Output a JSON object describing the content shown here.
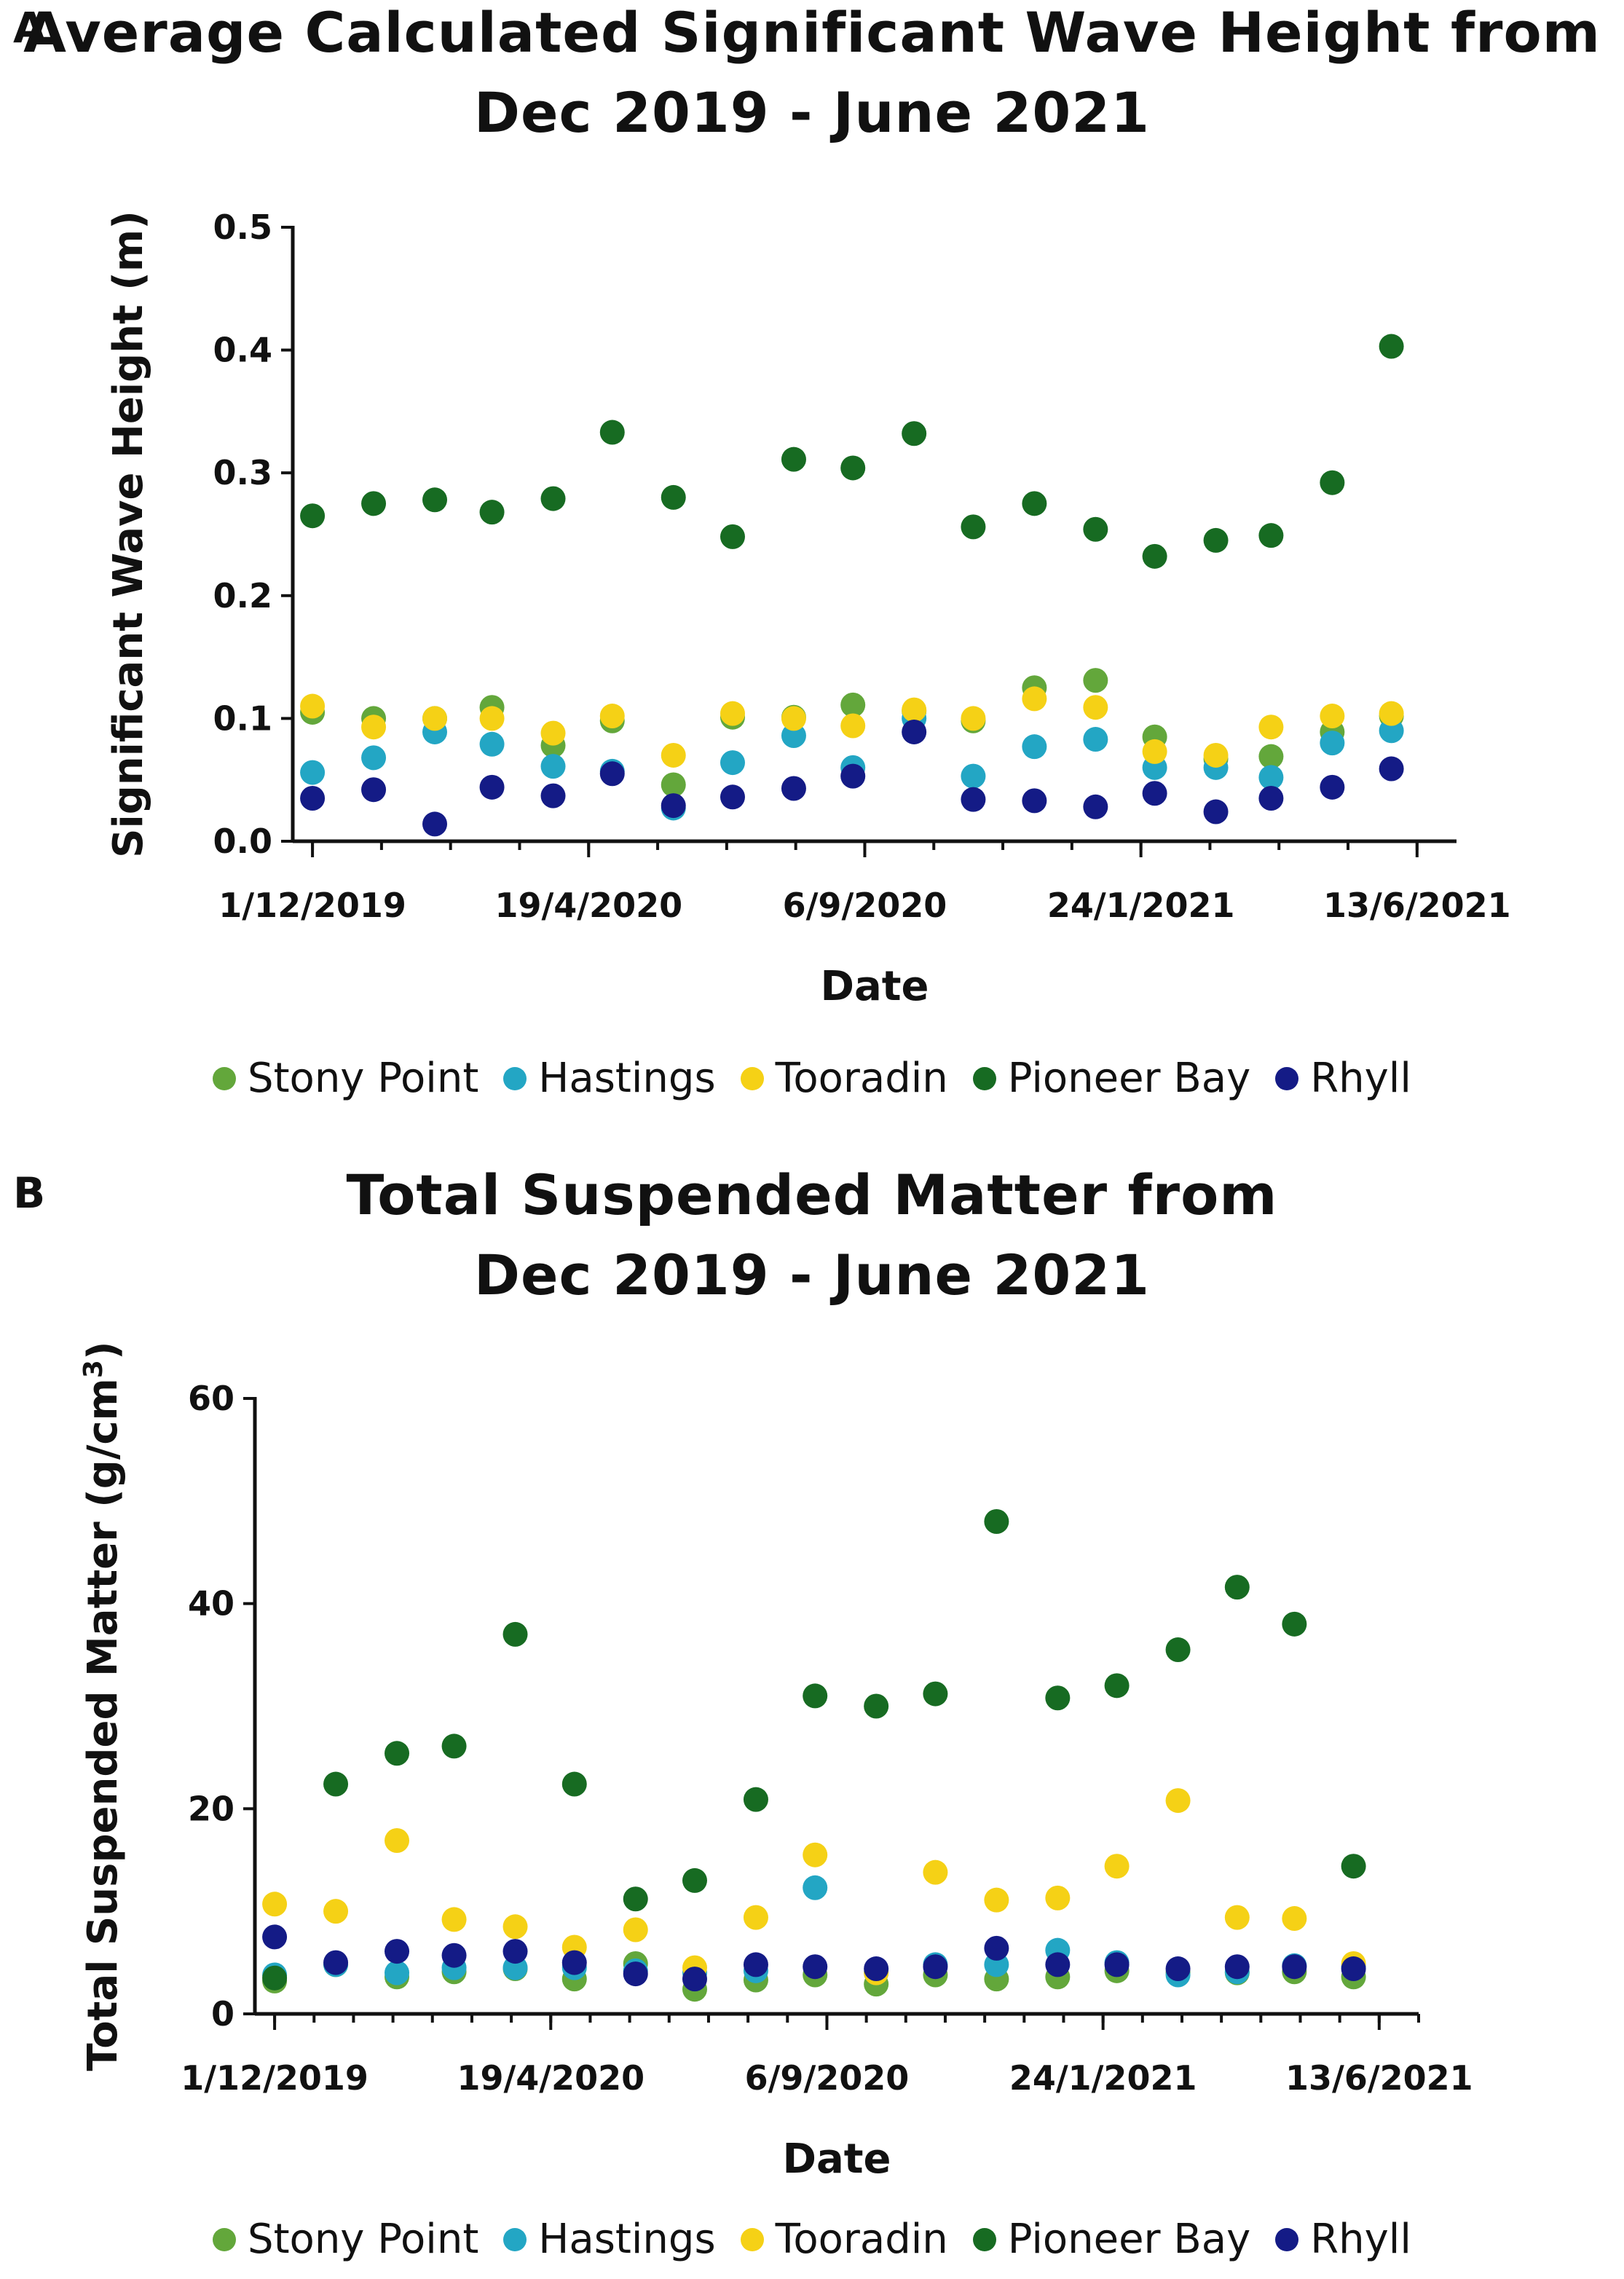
{
  "chart_data": [
    {
      "panel": "A",
      "type": "scatter",
      "title_lines": [
        "Average Calculated Significant Wave Height from",
        "Dec 2019 - June 2021"
      ],
      "xlabel": "Date",
      "ylabel": "Significant Wave Height (m)",
      "ylim": [
        0,
        0.5
      ],
      "yticks": [
        "0.0",
        "0.1",
        "0.2",
        "0.3",
        "0.4",
        "0.5"
      ],
      "xlim": [
        -10,
        580
      ],
      "xticks": [
        0,
        140,
        280,
        420,
        560
      ],
      "xtick_labels": [
        "1/12/2019",
        "19/4/2020",
        "6/9/2020",
        "24/1/2021",
        "13/6/2021"
      ],
      "minor_tick_step": 35,
      "legend": [
        "Stony Point",
        "Hastings",
        "Tooradin",
        "Pioneer Bay",
        "Rhyll"
      ],
      "colors": {
        "Stony Point": "#63a73b",
        "Hastings": "#23a6c4",
        "Tooradin": "#f5d116",
        "Pioneer Bay": "#176b22",
        "Rhyll": "#141b86"
      },
      "x": [
        0,
        31,
        62,
        91,
        122,
        152,
        183,
        213,
        244,
        274,
        305,
        335,
        366,
        397,
        427,
        458,
        486,
        517,
        547
      ],
      "series": [
        {
          "name": "Stony Point",
          "values": [
            0.105,
            0.1,
            0.1,
            0.109,
            0.078,
            0.098,
            0.046,
            0.101,
            0.101,
            0.111,
            0.106,
            0.098,
            0.125,
            0.131,
            0.085,
            0.067,
            0.069,
            0.089,
            0.102
          ]
        },
        {
          "name": "Hastings",
          "values": [
            0.056,
            0.068,
            0.089,
            0.079,
            0.061,
            0.057,
            0.027,
            0.064,
            0.086,
            0.06,
            0.1,
            0.053,
            0.077,
            0.083,
            0.06,
            0.06,
            0.052,
            0.08,
            0.09
          ]
        },
        {
          "name": "Tooradin",
          "values": [
            0.11,
            0.093,
            0.1,
            0.1,
            0.088,
            0.102,
            0.07,
            0.104,
            0.1,
            0.094,
            0.107,
            0.1,
            0.116,
            0.109,
            0.073,
            0.07,
            0.093,
            0.102,
            0.104
          ]
        },
        {
          "name": "Pioneer Bay",
          "values": [
            0.265,
            0.275,
            0.278,
            0.268,
            0.279,
            0.333,
            0.28,
            0.248,
            0.311,
            0.304,
            0.332,
            0.256,
            0.275,
            0.254,
            0.232,
            0.245,
            0.249,
            0.292,
            0.403
          ]
        },
        {
          "name": "Rhyll",
          "values": [
            0.035,
            0.042,
            0.014,
            0.044,
            0.037,
            0.055,
            0.029,
            0.036,
            0.043,
            0.053,
            0.089,
            0.034,
            0.033,
            0.028,
            0.039,
            0.024,
            0.035,
            0.044,
            0.059
          ]
        }
      ]
    },
    {
      "panel": "B",
      "type": "scatter",
      "title_lines": [
        "Total Suspended Matter from",
        "Dec 2019 - June 2021"
      ],
      "xlabel": "Date",
      "ylabel": "Total Suspended Matter (g/cm",
      "ylabel_sup": "3",
      "ylabel_end": ")",
      "ylim": [
        0,
        60
      ],
      "yticks": [
        "0",
        "20",
        "40",
        "60"
      ],
      "xlim": [
        -10,
        580
      ],
      "xticks": [
        0,
        140,
        280,
        420,
        560
      ],
      "xtick_labels": [
        "1/12/2019",
        "19/4/2020",
        "6/9/2020",
        "24/1/2021",
        "13/6/2021"
      ],
      "minor_tick_step": 20,
      "legend": [
        "Stony Point",
        "Hastings",
        "Tooradin",
        "Pioneer Bay",
        "Rhyll"
      ],
      "colors": {
        "Stony Point": "#63a73b",
        "Hastings": "#23a6c4",
        "Tooradin": "#f5d116",
        "Pioneer Bay": "#176b22",
        "Rhyll": "#141b86"
      },
      "x": [
        0,
        31,
        62,
        91,
        122,
        152,
        183,
        213,
        244,
        274,
        305,
        335,
        366,
        397,
        427,
        458,
        488,
        517,
        547
      ],
      "series": [
        {
          "name": "Stony Point",
          "values": [
            3.2,
            4.8,
            3.6,
            4.1,
            4.4,
            3.4,
            4.9,
            2.4,
            3.3,
            3.8,
            2.9,
            3.8,
            3.4,
            3.6,
            4.2,
            4.0,
            4.0,
            4.1,
            3.6
          ]
        },
        {
          "name": "Hastings",
          "values": [
            3.8,
            4.8,
            4.0,
            4.5,
            4.5,
            4.5,
            4.2,
            4.0,
            4.2,
            12.3,
            4.0,
            4.8,
            4.8,
            6.2,
            5.0,
            3.8,
            4.1,
            4.7,
            4.6
          ]
        },
        {
          "name": "Tooradin",
          "values": [
            10.7,
            10.0,
            16.9,
            9.2,
            8.5,
            6.5,
            8.2,
            4.5,
            9.4,
            15.5,
            4.0,
            13.8,
            11.1,
            11.3,
            14.4,
            20.8,
            9.4,
            9.3,
            4.9
          ]
        },
        {
          "name": "Pioneer Bay",
          "values": [
            3.5,
            22.4,
            25.4,
            26.1,
            37.0,
            22.4,
            11.2,
            13.0,
            20.9,
            31.0,
            30.0,
            31.2,
            48.0,
            30.8,
            32.0,
            35.5,
            41.6,
            38.0,
            14.4
          ]
        },
        {
          "name": "Rhyll",
          "values": [
            7.5,
            5.0,
            6.1,
            5.7,
            6.1,
            5.0,
            3.9,
            3.4,
            4.8,
            4.6,
            4.4,
            4.6,
            6.4,
            4.8,
            4.8,
            4.4,
            4.6,
            4.6,
            4.4
          ]
        }
      ]
    }
  ]
}
